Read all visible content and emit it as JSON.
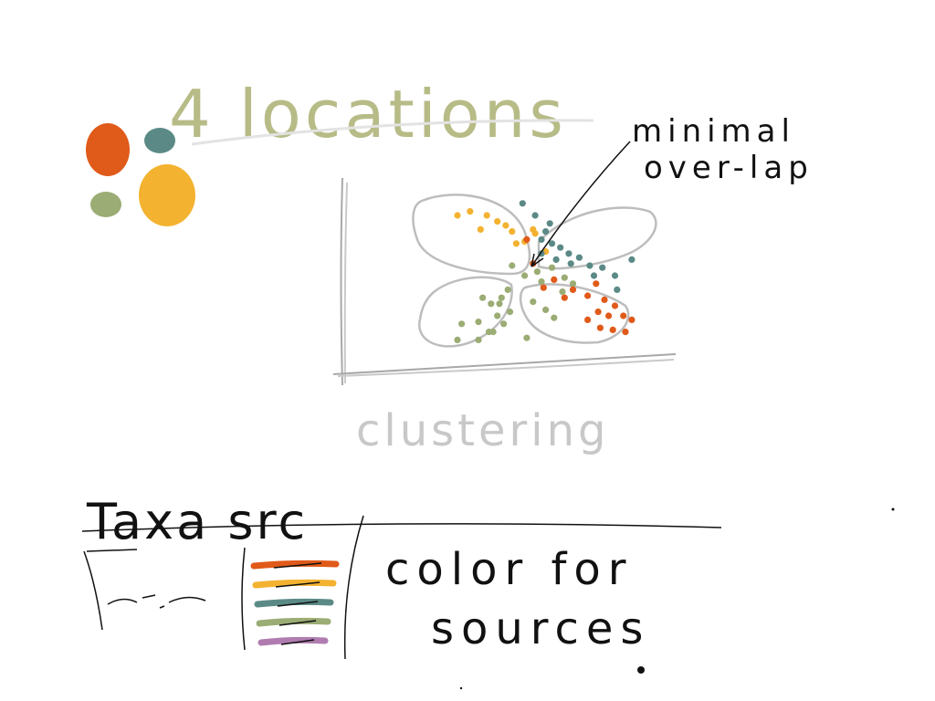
{
  "title": "4 locations",
  "legend_blobs": [
    {
      "color": "#e05a1a"
    },
    {
      "color": "#5b8a86"
    },
    {
      "color": "#9bac74"
    },
    {
      "color": "#f3b230"
    }
  ],
  "chart_data": {
    "type": "scatter",
    "xlabel": "clustering",
    "annotation": "minimal over-lap",
    "series": [
      {
        "color": "#f3b230",
        "values": [
          [
            2,
            7
          ],
          [
            2.6,
            7.2
          ],
          [
            3.4,
            7
          ],
          [
            3.9,
            6.7
          ],
          [
            4.3,
            6.5
          ],
          [
            4.6,
            6.2
          ],
          [
            5.2,
            5.7
          ],
          [
            3.1,
            6.3
          ],
          [
            4.8,
            5.6
          ],
          [
            5.6,
            6.3
          ],
          [
            5.7,
            6.1
          ],
          [
            6.2,
            5.2
          ]
        ]
      },
      {
        "color": "#5b8a86",
        "values": [
          [
            5.1,
            7.6
          ],
          [
            5.7,
            7.0
          ],
          [
            6.4,
            6.6
          ],
          [
            6.0,
            5.8
          ],
          [
            6.5,
            5.6
          ],
          [
            6.9,
            5.4
          ],
          [
            6.7,
            4.8
          ],
          [
            7.3,
            5.1
          ],
          [
            7.8,
            4.9
          ],
          [
            8.3,
            4.5
          ],
          [
            8.5,
            4.0
          ],
          [
            8.9,
            4.4
          ],
          [
            9.5,
            4.0
          ],
          [
            9.6,
            3.3
          ],
          [
            10.3,
            4.8
          ],
          [
            6.2,
            6.2
          ],
          [
            6.0,
            5.1
          ],
          [
            7.4,
            4.6
          ]
        ]
      },
      {
        "color": "#9bac74",
        "values": [
          [
            4.6,
            4.5
          ],
          [
            5.2,
            4.0
          ],
          [
            5.8,
            4.2
          ],
          [
            6.5,
            4.4
          ],
          [
            7.1,
            3.9
          ],
          [
            7.5,
            3.6
          ],
          [
            3.2,
            2.9
          ],
          [
            3.6,
            2.6
          ],
          [
            4.0,
            2.6
          ],
          [
            4.5,
            2.2
          ],
          [
            3.9,
            2.0
          ],
          [
            4.2,
            1.6
          ],
          [
            3.0,
            1.7
          ],
          [
            2.2,
            1.6
          ],
          [
            3.5,
            1.2
          ],
          [
            2.0,
            0.8
          ],
          [
            3.0,
            0.8
          ],
          [
            3.7,
            1.2
          ],
          [
            5.3,
            0.9
          ],
          [
            5.6,
            2.7
          ],
          [
            6.2,
            2.3
          ],
          [
            6.6,
            1.9
          ],
          [
            7.0,
            3.2
          ],
          [
            6.0,
            3.7
          ],
          [
            4.1,
            2.9
          ],
          [
            4.4,
            3.3
          ]
        ]
      },
      {
        "color": "#e05a1a",
        "values": [
          [
            5.3,
            5.8
          ],
          [
            5.6,
            4.6
          ],
          [
            6.1,
            3.4
          ],
          [
            6.6,
            3.8
          ],
          [
            7.1,
            2.9
          ],
          [
            7.5,
            3.3
          ],
          [
            8.2,
            3.0
          ],
          [
            8.6,
            3.6
          ],
          [
            9.0,
            2.8
          ],
          [
            9.5,
            2.5
          ],
          [
            8.7,
            2.2
          ],
          [
            9.2,
            2.0
          ],
          [
            9.9,
            2.0
          ],
          [
            10.3,
            1.8
          ],
          [
            8.8,
            1.4
          ],
          [
            9.4,
            1.3
          ],
          [
            10.0,
            1.2
          ],
          [
            8.2,
            1.8
          ]
        ]
      }
    ]
  },
  "bottom": {
    "heading": "Taxa src",
    "note_line1": "color for",
    "note_line2": "sources",
    "swatches": [
      {
        "color": "#e05a1a"
      },
      {
        "color": "#f3b230"
      },
      {
        "color": "#5b8a86"
      },
      {
        "color": "#9bac74"
      },
      {
        "color": "#b07cb0"
      }
    ]
  }
}
